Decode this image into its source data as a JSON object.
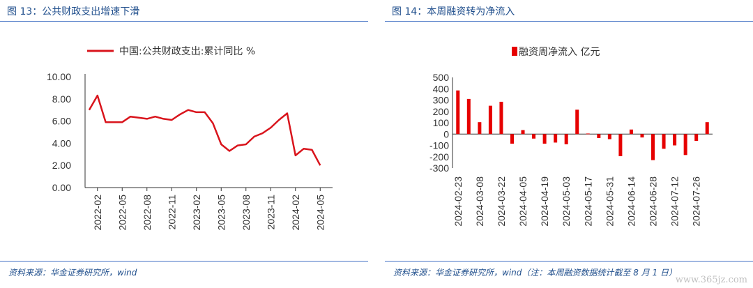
{
  "left": {
    "figure_title": "图 13：公共财政支出增速下滑",
    "source": "资料来源：华金证券研究所，wind",
    "chart_data": {
      "type": "line",
      "legend": "中国:公共财政支出:累计同比 %",
      "color": "#d9141c",
      "ylim": [
        0,
        10
      ],
      "yticks": [
        "0.00",
        "2.00",
        "4.00",
        "6.00",
        "8.00",
        "10.00"
      ],
      "xtick_labels": [
        "2022-02",
        "2022-05",
        "2022-08",
        "2022-11",
        "2023-02",
        "2023-05",
        "2023-08",
        "2023-11",
        "2024-02",
        "2024-05"
      ],
      "x": [
        "2022-01",
        "2022-02",
        "2022-03",
        "2022-04",
        "2022-05",
        "2022-06",
        "2022-07",
        "2022-08",
        "2022-09",
        "2022-10",
        "2022-11",
        "2022-12",
        "2023-01",
        "2023-02",
        "2023-03",
        "2023-04",
        "2023-05",
        "2023-06",
        "2023-07",
        "2023-08",
        "2023-09",
        "2023-10",
        "2023-11",
        "2023-12",
        "2024-01",
        "2024-02",
        "2024-03",
        "2024-04",
        "2024-05",
        "2024-06"
      ],
      "values": [
        7.0,
        8.3,
        5.9,
        5.9,
        5.9,
        6.4,
        6.3,
        6.2,
        6.4,
        6.2,
        6.1,
        6.6,
        7.0,
        6.8,
        6.8,
        5.8,
        3.9,
        3.3,
        3.8,
        3.9,
        4.6,
        4.9,
        5.4,
        6.1,
        6.7,
        2.9,
        3.5,
        3.4,
        2.0,
        null
      ]
    }
  },
  "right": {
    "figure_title": "图 14：本周融资转为净流入",
    "source": "资料来源：华金证券研究所，wind（注：本周融资数据统计截至 8 月 1 日）",
    "chart_data": {
      "type": "bar",
      "legend": "融资周净流入 亿元",
      "color": "#e60000",
      "ylim": [
        -300,
        500
      ],
      "yticks": [
        "-300",
        "-200",
        "-100",
        "0",
        "100",
        "200",
        "300",
        "400",
        "500"
      ],
      "xtick_labels": [
        "2024-02-23",
        "2024-03-08",
        "2024-03-22",
        "2024-04-05",
        "2024-04-19",
        "2024-05-03",
        "2024-05-17",
        "2024-05-31",
        "2024-06-14",
        "2024-06-28",
        "2024-07-12",
        "2024-07-26"
      ],
      "categories": [
        "2024-02-23",
        "2024-03-01",
        "2024-03-08",
        "2024-03-15",
        "2024-03-22",
        "2024-03-29",
        "2024-04-05",
        "2024-04-12",
        "2024-04-19",
        "2024-04-26",
        "2024-05-03",
        "2024-05-10",
        "2024-05-17",
        "2024-05-24",
        "2024-05-31",
        "2024-06-07",
        "2024-06-14",
        "2024-06-21",
        "2024-06-28",
        "2024-07-05",
        "2024-07-12",
        "2024-07-19",
        "2024-07-26",
        "2024-08-02"
      ],
      "values": [
        385,
        310,
        105,
        250,
        285,
        -85,
        35,
        -40,
        -85,
        -75,
        -90,
        215,
        5,
        -35,
        -45,
        -195,
        40,
        -30,
        -230,
        -130,
        -100,
        -185,
        -60,
        105
      ]
    }
  },
  "watermark": "www.365jz.com"
}
